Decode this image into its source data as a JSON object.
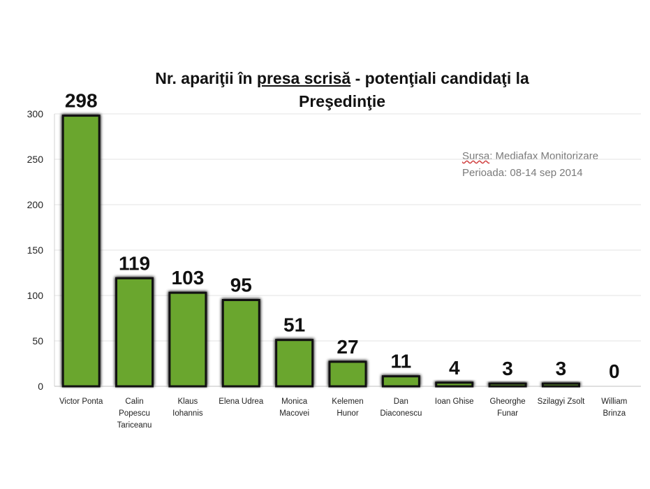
{
  "chart_data": {
    "type": "bar",
    "title_parts": [
      "Nr. apariţii în ",
      "presa scrisă",
      "  - potenţiali candidaţi la",
      "Preşedinţie"
    ],
    "source_label": "Sursa",
    "source_rest": ": Mediafax Monitorizare",
    "period": "Perioada: 08-14 sep 2014",
    "categories": [
      [
        "Victor Ponta"
      ],
      [
        "Calin",
        "Popescu",
        "Tariceanu"
      ],
      [
        "Klaus",
        "Iohannis"
      ],
      [
        "Elena Udrea"
      ],
      [
        "Monica",
        "Macovei"
      ],
      [
        "Kelemen",
        "Hunor"
      ],
      [
        "Dan",
        "Diaconescu"
      ],
      [
        "Ioan Ghise"
      ],
      [
        "Gheorghe",
        "Funar"
      ],
      [
        "Szilagyi Zsolt"
      ],
      [
        "William",
        "Brinza"
      ]
    ],
    "values": [
      298,
      119,
      103,
      95,
      51,
      27,
      11,
      4,
      3,
      3,
      0
    ],
    "ylim": [
      0,
      300
    ],
    "yticks": [
      0,
      50,
      100,
      150,
      200,
      250,
      300
    ],
    "grid": true,
    "colors": {
      "bar": "#6aa62e",
      "border": "#111111",
      "grid": "#e3e3e3"
    }
  }
}
